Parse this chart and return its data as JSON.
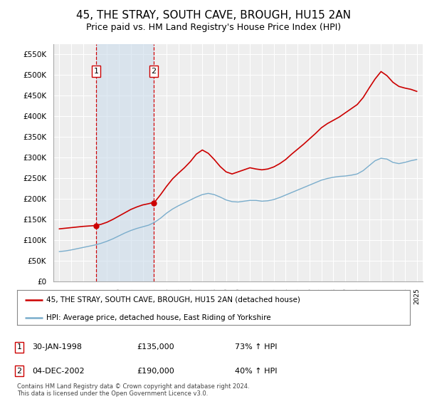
{
  "title": "45, THE STRAY, SOUTH CAVE, BROUGH, HU15 2AN",
  "subtitle": "Price paid vs. HM Land Registry's House Price Index (HPI)",
  "title_fontsize": 11,
  "subtitle_fontsize": 9,
  "ylabel_ticks": [
    "£0",
    "£50K",
    "£100K",
    "£150K",
    "£200K",
    "£250K",
    "£300K",
    "£350K",
    "£400K",
    "£450K",
    "£500K",
    "£550K"
  ],
  "ytick_vals": [
    0,
    50000,
    100000,
    150000,
    200000,
    250000,
    300000,
    350000,
    400000,
    450000,
    500000,
    550000
  ],
  "ylim": [
    0,
    575000
  ],
  "xlim_start": 1994.5,
  "xlim_end": 2025.5,
  "background_color": "#ffffff",
  "plot_bg_color": "#eeeeee",
  "grid_color": "#ffffff",
  "transaction1": {
    "date_label": "30-JAN-1998",
    "year": 1998.08,
    "price": 135000,
    "label": "1"
  },
  "transaction2": {
    "date_label": "04-DEC-2002",
    "year": 2002.92,
    "price": 190000,
    "label": "2"
  },
  "shade_color": "#ccdcec",
  "shade_alpha": 0.6,
  "legend_line1": "45, THE STRAY, SOUTH CAVE, BROUGH, HU15 2AN (detached house)",
  "legend_line2": "HPI: Average price, detached house, East Riding of Yorkshire",
  "footer": "Contains HM Land Registry data © Crown copyright and database right 2024.\nThis data is licensed under the Open Government Licence v3.0.",
  "line_color_red": "#cc0000",
  "line_color_blue": "#7aadcc",
  "marker_box_color": "#cc0000",
  "hpi_years": [
    1995,
    1995.5,
    1996,
    1996.5,
    1997,
    1997.5,
    1998,
    1998.5,
    1999,
    1999.5,
    2000,
    2000.5,
    2001,
    2001.5,
    2002,
    2002.5,
    2003,
    2003.5,
    2004,
    2004.5,
    2005,
    2005.5,
    2006,
    2006.5,
    2007,
    2007.5,
    2008,
    2008.5,
    2009,
    2009.5,
    2010,
    2010.5,
    2011,
    2011.5,
    2012,
    2012.5,
    2013,
    2013.5,
    2014,
    2014.5,
    2015,
    2015.5,
    2016,
    2016.5,
    2017,
    2017.5,
    2018,
    2018.5,
    2019,
    2019.5,
    2020,
    2020.5,
    2021,
    2021.5,
    2022,
    2022.5,
    2023,
    2023.5,
    2024,
    2024.5,
    2025
  ],
  "hpi_values": [
    72000,
    73500,
    76000,
    79000,
    82000,
    85000,
    88000,
    92000,
    97000,
    103000,
    110000,
    117000,
    123000,
    128000,
    132000,
    136000,
    143000,
    153000,
    165000,
    175000,
    183000,
    190000,
    197000,
    204000,
    210000,
    213000,
    210000,
    204000,
    197000,
    193000,
    192000,
    194000,
    196000,
    196000,
    194000,
    195000,
    198000,
    203000,
    209000,
    215000,
    221000,
    227000,
    233000,
    239000,
    245000,
    249000,
    252000,
    254000,
    255000,
    257000,
    260000,
    268000,
    280000,
    292000,
    298000,
    296000,
    288000,
    285000,
    288000,
    292000,
    295000
  ],
  "prop_years": [
    1995,
    1995.5,
    1996,
    1996.5,
    1997,
    1997.5,
    1998,
    1998.5,
    1999,
    1999.5,
    2000,
    2000.5,
    2001,
    2001.5,
    2002,
    2002.5,
    2003,
    2003.5,
    2004,
    2004.5,
    2005,
    2005.5,
    2006,
    2006.5,
    2007,
    2007.5,
    2008,
    2008.5,
    2009,
    2009.5,
    2010,
    2010.5,
    2011,
    2011.5,
    2012,
    2012.5,
    2013,
    2013.5,
    2014,
    2014.5,
    2015,
    2015.5,
    2016,
    2016.5,
    2017,
    2017.5,
    2018,
    2018.5,
    2019,
    2019.5,
    2020,
    2020.5,
    2021,
    2021.5,
    2022,
    2022.5,
    2023,
    2023.5,
    2024,
    2024.5,
    2025
  ],
  "prop_values": [
    127000,
    128500,
    130000,
    131500,
    133000,
    134000,
    135000,
    138000,
    143000,
    150000,
    158000,
    166000,
    174000,
    180000,
    185000,
    188000,
    192000,
    210000,
    230000,
    248000,
    262000,
    275000,
    290000,
    308000,
    318000,
    310000,
    295000,
    278000,
    265000,
    260000,
    265000,
    270000,
    275000,
    272000,
    270000,
    272000,
    277000,
    285000,
    295000,
    308000,
    320000,
    332000,
    345000,
    358000,
    372000,
    382000,
    390000,
    398000,
    408000,
    418000,
    428000,
    445000,
    468000,
    490000,
    508000,
    498000,
    482000,
    472000,
    468000,
    465000,
    460000
  ]
}
